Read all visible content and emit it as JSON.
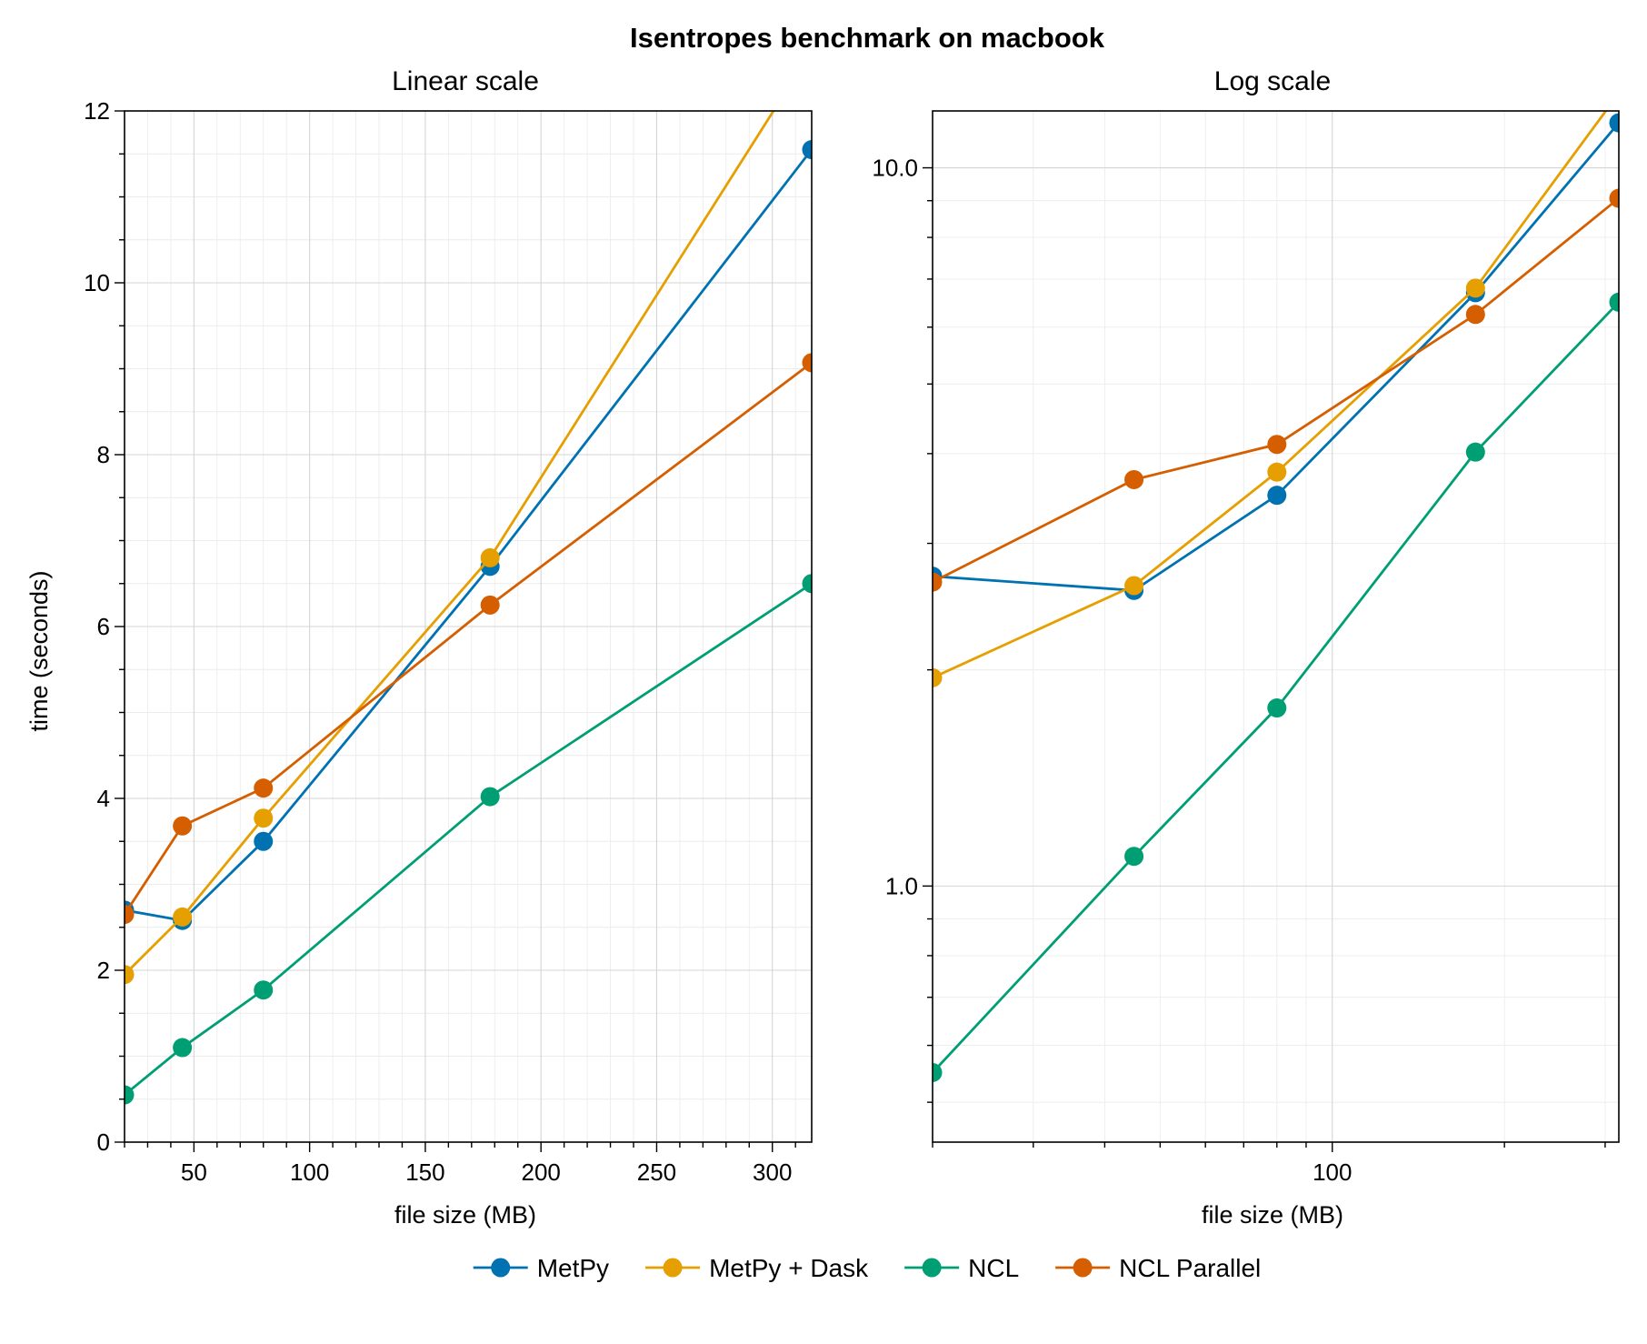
{
  "figure": {
    "suptitle": "Isentropes benchmark on macbook"
  },
  "colors": {
    "MetPy": "#0072b2",
    "MetPy + Dask": "#e69f00",
    "NCL": "#009e73",
    "NCL Parallel": "#d55e00"
  },
  "chart_data": [
    {
      "type": "line",
      "title": "Linear scale",
      "xlabel": "file size (MB)",
      "ylabel": "time (seconds)",
      "xscale": "linear",
      "yscale": "linear",
      "xlim": [
        20,
        317
      ],
      "ylim": [
        0,
        12
      ],
      "xticks": [
        50,
        100,
        150,
        200,
        250,
        300
      ],
      "yticks": [
        0,
        2,
        4,
        6,
        8,
        10,
        12
      ],
      "grid": true,
      "x": [
        20,
        45,
        80,
        178,
        317
      ],
      "series": [
        {
          "name": "MetPy",
          "values": [
            2.7,
            2.58,
            3.5,
            6.7,
            11.55
          ]
        },
        {
          "name": "MetPy + Dask",
          "values": [
            1.95,
            2.62,
            3.77,
            6.8,
            12.7
          ]
        },
        {
          "name": "NCL",
          "values": [
            0.55,
            1.1,
            1.77,
            4.02,
            6.5
          ]
        },
        {
          "name": "NCL Parallel",
          "values": [
            2.65,
            3.68,
            4.12,
            6.25,
            9.07
          ]
        }
      ]
    },
    {
      "type": "line",
      "title": "Log scale",
      "xlabel": "file size (MB)",
      "ylabel": "",
      "xscale": "log",
      "yscale": "log",
      "xlim": [
        20,
        317
      ],
      "ylim": [
        0.44,
        12.0
      ],
      "xticks": [
        100
      ],
      "yticks": [
        1.0,
        10.0
      ],
      "grid": true,
      "x": [
        20,
        45,
        80,
        178,
        317
      ],
      "series": [
        {
          "name": "MetPy",
          "values": [
            2.7,
            2.58,
            3.5,
            6.7,
            11.55
          ]
        },
        {
          "name": "MetPy + Dask",
          "values": [
            1.95,
            2.62,
            3.77,
            6.8,
            12.7
          ]
        },
        {
          "name": "NCL",
          "values": [
            0.55,
            1.1,
            1.77,
            4.02,
            6.5
          ]
        },
        {
          "name": "NCL Parallel",
          "values": [
            2.65,
            3.68,
            4.12,
            6.25,
            9.07
          ]
        }
      ]
    }
  ],
  "legend": {
    "placement": "bottom-center",
    "entries": [
      "MetPy",
      "MetPy + Dask",
      "NCL",
      "NCL Parallel"
    ]
  }
}
